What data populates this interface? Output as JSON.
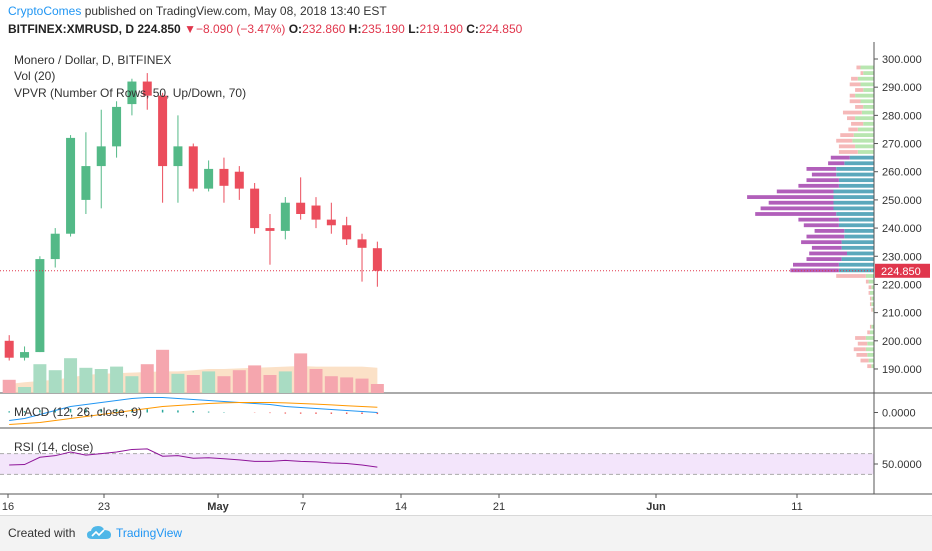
{
  "header": {
    "author": "CryptoComes",
    "published_text": "published on TradingView.com, May 08, 2018 13:40 EST",
    "symbol": "BITFINEX:XMRUSD, D",
    "last": "224.850",
    "change_arrow": "▼",
    "change": "−8.090 (−3.47%)",
    "o_label": "O:",
    "o": "232.860",
    "h_label": "H:",
    "h": "235.190",
    "l_label": "L:",
    "l": "219.190",
    "c_label": "C:",
    "c": "224.850"
  },
  "legend": {
    "main": "Monero / Dollar, D, BITFINEX",
    "vol": "Vol (20)",
    "vpvr": "VPVR (Number Of Rows, 50, Up/Down, 70)",
    "macd": "MACD (12, 26, close, 9)",
    "rsi": "RSI (14, close)"
  },
  "footer": {
    "created_with": "Created with",
    "brand": "TradingView"
  },
  "colors": {
    "up": "#53b987",
    "down": "#eb4d5c",
    "vol_up": "#a9dcc3",
    "vol_down": "#f5a6ae",
    "vpvr_up": "#5ba8bc",
    "vpvr_down": "#b15fba",
    "vpvr_up_light": "#b8e6b0",
    "vpvr_down_light": "#f5b8b8",
    "price_line": "#e0364c",
    "macd_line": "#2196f3",
    "signal_line": "#ff9800",
    "rsi_line": "#8e1599",
    "rsi_band": "#f3e5fb"
  },
  "chart_data": {
    "type": "candlestick",
    "y_ticks": [
      "300.000",
      "290.000",
      "280.000",
      "270.000",
      "260.000",
      "250.000",
      "240.000",
      "230.000",
      "220.000",
      "210.000",
      "200.000",
      "190.000"
    ],
    "price_label": "224.850",
    "macd_tick": "0.0000",
    "rsi_tick": "50.0000",
    "x_ticks": [
      "16",
      "23",
      "May",
      "7",
      "14",
      "21",
      "Jun",
      "11"
    ],
    "candles": [
      {
        "o": 200,
        "h": 202,
        "l": 193,
        "c": 194
      },
      {
        "o": 194,
        "h": 198,
        "l": 193,
        "c": 196
      },
      {
        "o": 196,
        "h": 230,
        "l": 196,
        "c": 229
      },
      {
        "o": 229,
        "h": 240,
        "l": 226,
        "c": 238
      },
      {
        "o": 238,
        "h": 273,
        "l": 237,
        "c": 272
      },
      {
        "o": 250,
        "h": 274,
        "l": 245,
        "c": 262
      },
      {
        "o": 262,
        "h": 282,
        "l": 247,
        "c": 269
      },
      {
        "o": 269,
        "h": 285,
        "l": 265,
        "c": 283
      },
      {
        "o": 284,
        "h": 293,
        "l": 280,
        "c": 292
      },
      {
        "o": 292,
        "h": 295,
        "l": 282,
        "c": 287
      },
      {
        "o": 287,
        "h": 288,
        "l": 249,
        "c": 262
      },
      {
        "o": 262,
        "h": 280,
        "l": 249,
        "c": 269
      },
      {
        "o": 269,
        "h": 270,
        "l": 253,
        "c": 254
      },
      {
        "o": 254,
        "h": 264,
        "l": 253,
        "c": 261
      },
      {
        "o": 261,
        "h": 265,
        "l": 249,
        "c": 255
      },
      {
        "o": 260,
        "h": 262,
        "l": 250,
        "c": 254
      },
      {
        "o": 254,
        "h": 256,
        "l": 238,
        "c": 240
      },
      {
        "o": 240,
        "h": 245,
        "l": 227,
        "c": 239
      },
      {
        "o": 239,
        "h": 251,
        "l": 236,
        "c": 249
      },
      {
        "o": 249,
        "h": 258,
        "l": 243,
        "c": 245
      },
      {
        "o": 248,
        "h": 251,
        "l": 240,
        "c": 243
      },
      {
        "o": 243,
        "h": 249,
        "l": 238,
        "c": 241
      },
      {
        "o": 241,
        "h": 244,
        "l": 234,
        "c": 236
      },
      {
        "o": 236,
        "h": 238,
        "l": 221,
        "c": 233
      },
      {
        "o": 232.86,
        "h": 235.19,
        "l": 219.19,
        "c": 224.85
      }
    ],
    "volume": [
      22,
      10,
      48,
      38,
      58,
      42,
      40,
      44,
      28,
      48,
      72,
      32,
      30,
      36,
      28,
      38,
      46,
      30,
      36,
      66,
      40,
      28,
      26,
      24,
      15
    ],
    "volume_ma": [
      15,
      18,
      20,
      22,
      26,
      30,
      32,
      33,
      34,
      35,
      36,
      36,
      38,
      40,
      40,
      41,
      42,
      43,
      44,
      45,
      44,
      44,
      44,
      44,
      42
    ],
    "vpvr": [
      {
        "p": 297,
        "u": 10,
        "d": 3
      },
      {
        "p": 295,
        "u": 8,
        "d": 2
      },
      {
        "p": 293,
        "u": 12,
        "d": 5
      },
      {
        "p": 291,
        "u": 10,
        "d": 8
      },
      {
        "p": 289,
        "u": 8,
        "d": 6
      },
      {
        "p": 287,
        "u": 14,
        "d": 4
      },
      {
        "p": 285,
        "u": 10,
        "d": 8
      },
      {
        "p": 283,
        "u": 8,
        "d": 6
      },
      {
        "p": 281,
        "u": 9,
        "d": 14
      },
      {
        "p": 279,
        "u": 14,
        "d": 6
      },
      {
        "p": 277,
        "u": 8,
        "d": 9
      },
      {
        "p": 275,
        "u": 12,
        "d": 7
      },
      {
        "p": 273,
        "u": 15,
        "d": 10
      },
      {
        "p": 271,
        "u": 16,
        "d": 12
      },
      {
        "p": 269,
        "u": 14,
        "d": 12
      },
      {
        "p": 267,
        "u": 12,
        "d": 14
      },
      {
        "p": 265,
        "u": 18,
        "d": 14
      },
      {
        "p": 263,
        "u": 22,
        "d": 12
      },
      {
        "p": 261,
        "u": 28,
        "d": 22
      },
      {
        "p": 259,
        "u": 28,
        "d": 18
      },
      {
        "p": 257,
        "u": 26,
        "d": 24
      },
      {
        "p": 255,
        "u": 26,
        "d": 30
      },
      {
        "p": 253,
        "u": 30,
        "d": 42
      },
      {
        "p": 251,
        "u": 30,
        "d": 64
      },
      {
        "p": 249,
        "u": 30,
        "d": 48
      },
      {
        "p": 247,
        "u": 30,
        "d": 54
      },
      {
        "p": 245,
        "u": 28,
        "d": 60
      },
      {
        "p": 243,
        "u": 26,
        "d": 30
      },
      {
        "p": 241,
        "u": 26,
        "d": 26
      },
      {
        "p": 239,
        "u": 22,
        "d": 22
      },
      {
        "p": 237,
        "u": 22,
        "d": 28
      },
      {
        "p": 235,
        "u": 24,
        "d": 30
      },
      {
        "p": 233,
        "u": 24,
        "d": 22
      },
      {
        "p": 231,
        "u": 20,
        "d": 28
      },
      {
        "p": 229,
        "u": 24,
        "d": 26
      },
      {
        "p": 227,
        "u": 26,
        "d": 34
      },
      {
        "p": 225,
        "u": 26,
        "d": 36
      },
      {
        "p": 223,
        "u": 6,
        "d": 22
      },
      {
        "p": 221,
        "u": 4,
        "d": 2
      },
      {
        "p": 219,
        "u": 2,
        "d": 2
      },
      {
        "p": 217,
        "u": 3,
        "d": 1
      },
      {
        "p": 215,
        "u": 2,
        "d": 1
      },
      {
        "p": 213,
        "u": 2,
        "d": 1
      },
      {
        "p": 211,
        "u": 1,
        "d": 1
      },
      {
        "p": 205,
        "u": 2,
        "d": 1
      },
      {
        "p": 203,
        "u": 3,
        "d": 2
      },
      {
        "p": 201,
        "u": 6,
        "d": 8
      },
      {
        "p": 199,
        "u": 5,
        "d": 7
      },
      {
        "p": 197,
        "u": 6,
        "d": 9
      },
      {
        "p": 195,
        "u": 5,
        "d": 8
      },
      {
        "p": 193,
        "u": 4,
        "d": 6
      },
      {
        "p": 191,
        "u": 2,
        "d": 3
      }
    ],
    "macd": [
      -4,
      -3,
      -1,
      1,
      3,
      4,
      5,
      6,
      7,
      7.5,
      7.5,
      7,
      6.5,
      6,
      5.5,
      5,
      4.5,
      4,
      3,
      2.5,
      2,
      1.5,
      1,
      0.5,
      0
    ],
    "signal": [
      -6,
      -5.5,
      -5,
      -4,
      -3,
      -2,
      -1,
      0,
      1,
      2,
      3,
      3.5,
      4,
      4.5,
      4.8,
      5,
      5,
      5,
      4.8,
      4.5,
      4.2,
      3.8,
      3.4,
      3,
      2.6
    ],
    "rsi": [
      48,
      49,
      63,
      66,
      73,
      67,
      70,
      73,
      78,
      79,
      65,
      66,
      61,
      62,
      60,
      58,
      55,
      55,
      57,
      55,
      54,
      52,
      51,
      48,
      44
    ]
  }
}
